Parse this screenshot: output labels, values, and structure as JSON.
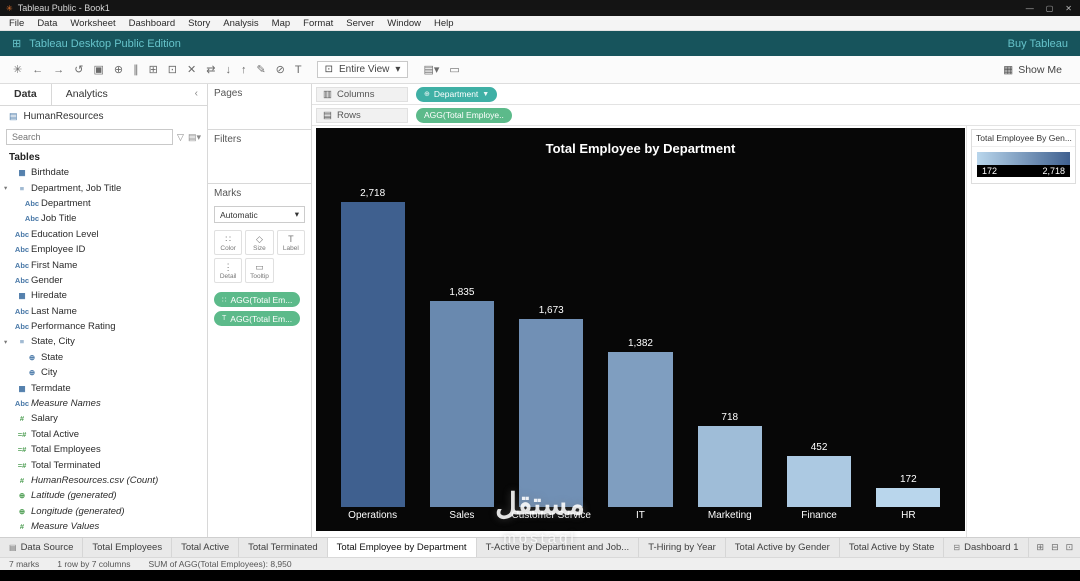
{
  "window": {
    "title": "Tableau Public - Book1",
    "controls": {
      "minimize": "—",
      "maximize": "▢",
      "close": "✕"
    }
  },
  "menu": {
    "items": [
      "File",
      "Data",
      "Worksheet",
      "Dashboard",
      "Story",
      "Analysis",
      "Map",
      "Format",
      "Server",
      "Window",
      "Help"
    ]
  },
  "edition_bar": {
    "label": "Tableau Desktop Public Edition",
    "buy_link": "Buy Tableau"
  },
  "toolbar": {
    "icons": [
      {
        "name": "tableau-logo-icon",
        "glyph": "✳"
      },
      {
        "name": "undo-icon",
        "glyph": "←"
      },
      {
        "name": "redo-icon",
        "glyph": "→"
      },
      {
        "name": "replay-icon",
        "glyph": "↺"
      },
      {
        "name": "save-icon",
        "glyph": "▣"
      },
      {
        "name": "new-datasource-icon",
        "glyph": "⊕"
      },
      {
        "name": "pause-updates-icon",
        "glyph": "∥"
      },
      {
        "name": "new-worksheet-icon",
        "glyph": "⊞"
      },
      {
        "name": "duplicate-icon",
        "glyph": "⊡"
      },
      {
        "name": "clear-sheet-icon",
        "glyph": "✕"
      },
      {
        "name": "swap-axes-icon",
        "glyph": "⇄"
      },
      {
        "name": "sort-ascending-icon",
        "glyph": "↓"
      },
      {
        "name": "sort-descending-icon",
        "glyph": "↑"
      },
      {
        "name": "highlight-icon",
        "glyph": "✎"
      },
      {
        "name": "group-members-icon",
        "glyph": "⊘"
      },
      {
        "name": "show-labels-icon",
        "glyph": "T"
      }
    ],
    "view_select": {
      "label": "Entire View"
    },
    "icons_right": [
      {
        "name": "show-cards-icon",
        "glyph": "▤▾"
      },
      {
        "name": "presentation-mode-icon",
        "glyph": "▭"
      }
    ],
    "show_me": "Show Me"
  },
  "sidebar": {
    "tabs": [
      {
        "label": "Data"
      },
      {
        "label": "Analytics"
      }
    ],
    "datasource": "HumanResources",
    "search": {
      "placeholder": "Search"
    },
    "tables_header": "Tables",
    "fields": [
      {
        "icon": "calendar",
        "label": "Birthdate",
        "type": "dim"
      },
      {
        "icon": "hierarchy",
        "label": "Department, Job Title",
        "type": "dim",
        "hier": true
      },
      {
        "icon": "abc",
        "label": "Department",
        "type": "dim",
        "indent": 1
      },
      {
        "icon": "abc",
        "label": "Job Title",
        "type": "dim",
        "indent": 1
      },
      {
        "icon": "abc",
        "label": "Education Level",
        "type": "dim"
      },
      {
        "icon": "abc",
        "label": "Employee ID",
        "type": "dim"
      },
      {
        "icon": "abc",
        "label": "First Name",
        "type": "dim"
      },
      {
        "icon": "abc",
        "label": "Gender",
        "type": "dim"
      },
      {
        "icon": "calendar",
        "label": "Hiredate",
        "type": "dim"
      },
      {
        "icon": "abc",
        "label": "Last Name",
        "type": "dim"
      },
      {
        "icon": "abc",
        "label": "Performance Rating",
        "type": "dim"
      },
      {
        "icon": "hierarchy",
        "label": "State, City",
        "type": "dim",
        "hier": true
      },
      {
        "icon": "globe",
        "label": "State",
        "type": "dim",
        "indent": 1
      },
      {
        "icon": "globe",
        "label": "City",
        "type": "dim",
        "indent": 1
      },
      {
        "icon": "calendar",
        "label": "Termdate",
        "type": "dim"
      },
      {
        "icon": "abc",
        "label": "Measure Names",
        "type": "dim",
        "italic": true
      },
      {
        "icon": "number",
        "label": "Salary",
        "type": "measure"
      },
      {
        "icon": "number-eq",
        "label": "Total Active",
        "type": "measure"
      },
      {
        "icon": "number-eq",
        "label": "Total Employees",
        "type": "measure"
      },
      {
        "icon": "number-eq",
        "label": "Total Terminated",
        "type": "measure"
      },
      {
        "icon": "number",
        "label": "HumanResources.csv (Count)",
        "type": "measure",
        "italic": true
      },
      {
        "icon": "globe",
        "label": "Latitude (generated)",
        "type": "measure",
        "italic": true
      },
      {
        "icon": "globe",
        "label": "Longitude (generated)",
        "type": "measure",
        "italic": true
      },
      {
        "icon": "number",
        "label": "Measure Values",
        "type": "measure",
        "italic": true
      }
    ]
  },
  "cards": {
    "pages_title": "Pages",
    "filters_title": "Filters",
    "marks_title": "Marks",
    "marks_type": "Automatic",
    "marks_buttons": [
      {
        "label": "Color",
        "icon": "color-icon",
        "glyph": "∷"
      },
      {
        "label": "Size",
        "icon": "size-icon",
        "glyph": "◇"
      },
      {
        "label": "Label",
        "icon": "label-icon",
        "glyph": "T"
      },
      {
        "label": "Detail",
        "icon": "detail-icon",
        "glyph": "⋮"
      },
      {
        "label": "Tooltip",
        "icon": "tooltip-icon",
        "glyph": "▭"
      }
    ],
    "marks_pills": [
      {
        "label": "AGG(Total Em...",
        "color": "green",
        "lead": "∷",
        "lead_name": "color-marks-icon"
      },
      {
        "label": "AGG(Total Em...",
        "color": "green",
        "lead": "T",
        "lead_name": "label-marks-icon"
      }
    ]
  },
  "shelves": {
    "columns_label": "Columns",
    "rows_label": "Rows",
    "columns_pills": [
      {
        "label": "Department",
        "color": "teal",
        "lead": "⊕",
        "lead_name": "hierarchy-plus-icon",
        "trail": "▼",
        "trail_name": "filter-indicator-icon"
      }
    ],
    "rows_pills": [
      {
        "label": "AGG(Total Employe..",
        "color": "green"
      }
    ]
  },
  "chart_data": {
    "type": "bar",
    "title": "Total Employee by Department",
    "categories": [
      "Operations",
      "Sales",
      "Customer Service",
      "IT",
      "Marketing",
      "Finance",
      "HR"
    ],
    "values": [
      2718,
      1835,
      1673,
      1382,
      718,
      452,
      172
    ],
    "value_labels": [
      "2,718",
      "1,835",
      "1,673",
      "1,382",
      "718",
      "452",
      "172"
    ],
    "xlabel": "Department",
    "ylabel": "Total Employee",
    "ylim": [
      0,
      2718
    ],
    "background": "#070707",
    "grid": false,
    "legend_position": "right",
    "palette": {
      "min_color": "#b9d6ec",
      "max_color": "#3f608f"
    }
  },
  "legend": {
    "title": "Total Employee By Gen...",
    "min": "172",
    "max": "2,718"
  },
  "sheet_tabs": {
    "tabs": [
      {
        "label": "Data Source",
        "icon": "datasource"
      },
      {
        "label": "Total Employees"
      },
      {
        "label": "Total Active"
      },
      {
        "label": "Total Terminated"
      },
      {
        "label": "Total Employee by Department",
        "active": true
      },
      {
        "label": "T-Active by Department and Job..."
      },
      {
        "label": "T-Hiring by Year"
      },
      {
        "label": "Total Active by Gender"
      },
      {
        "label": "Total Active by State"
      },
      {
        "label": "Dashboard 1",
        "icon": "dashboard"
      }
    ],
    "new_buttons": [
      {
        "name": "new-worksheet-tab-icon",
        "glyph": "⊞"
      },
      {
        "name": "new-dashboard-tab-icon",
        "glyph": "⊟"
      },
      {
        "name": "new-story-tab-icon",
        "glyph": "⊡"
      }
    ],
    "right_icons": [
      {
        "name": "show-filmstrip-icon",
        "glyph": "▥"
      },
      {
        "name": "show-sheet-sorter-icon",
        "glyph": "▤"
      }
    ]
  },
  "status_bar": {
    "items": [
      "7 marks",
      "1 row by 7 columns",
      "SUM of AGG(Total Employees): 8,950"
    ]
  },
  "watermark": {
    "text": "مستقل",
    "subtext": "mostaql"
  }
}
